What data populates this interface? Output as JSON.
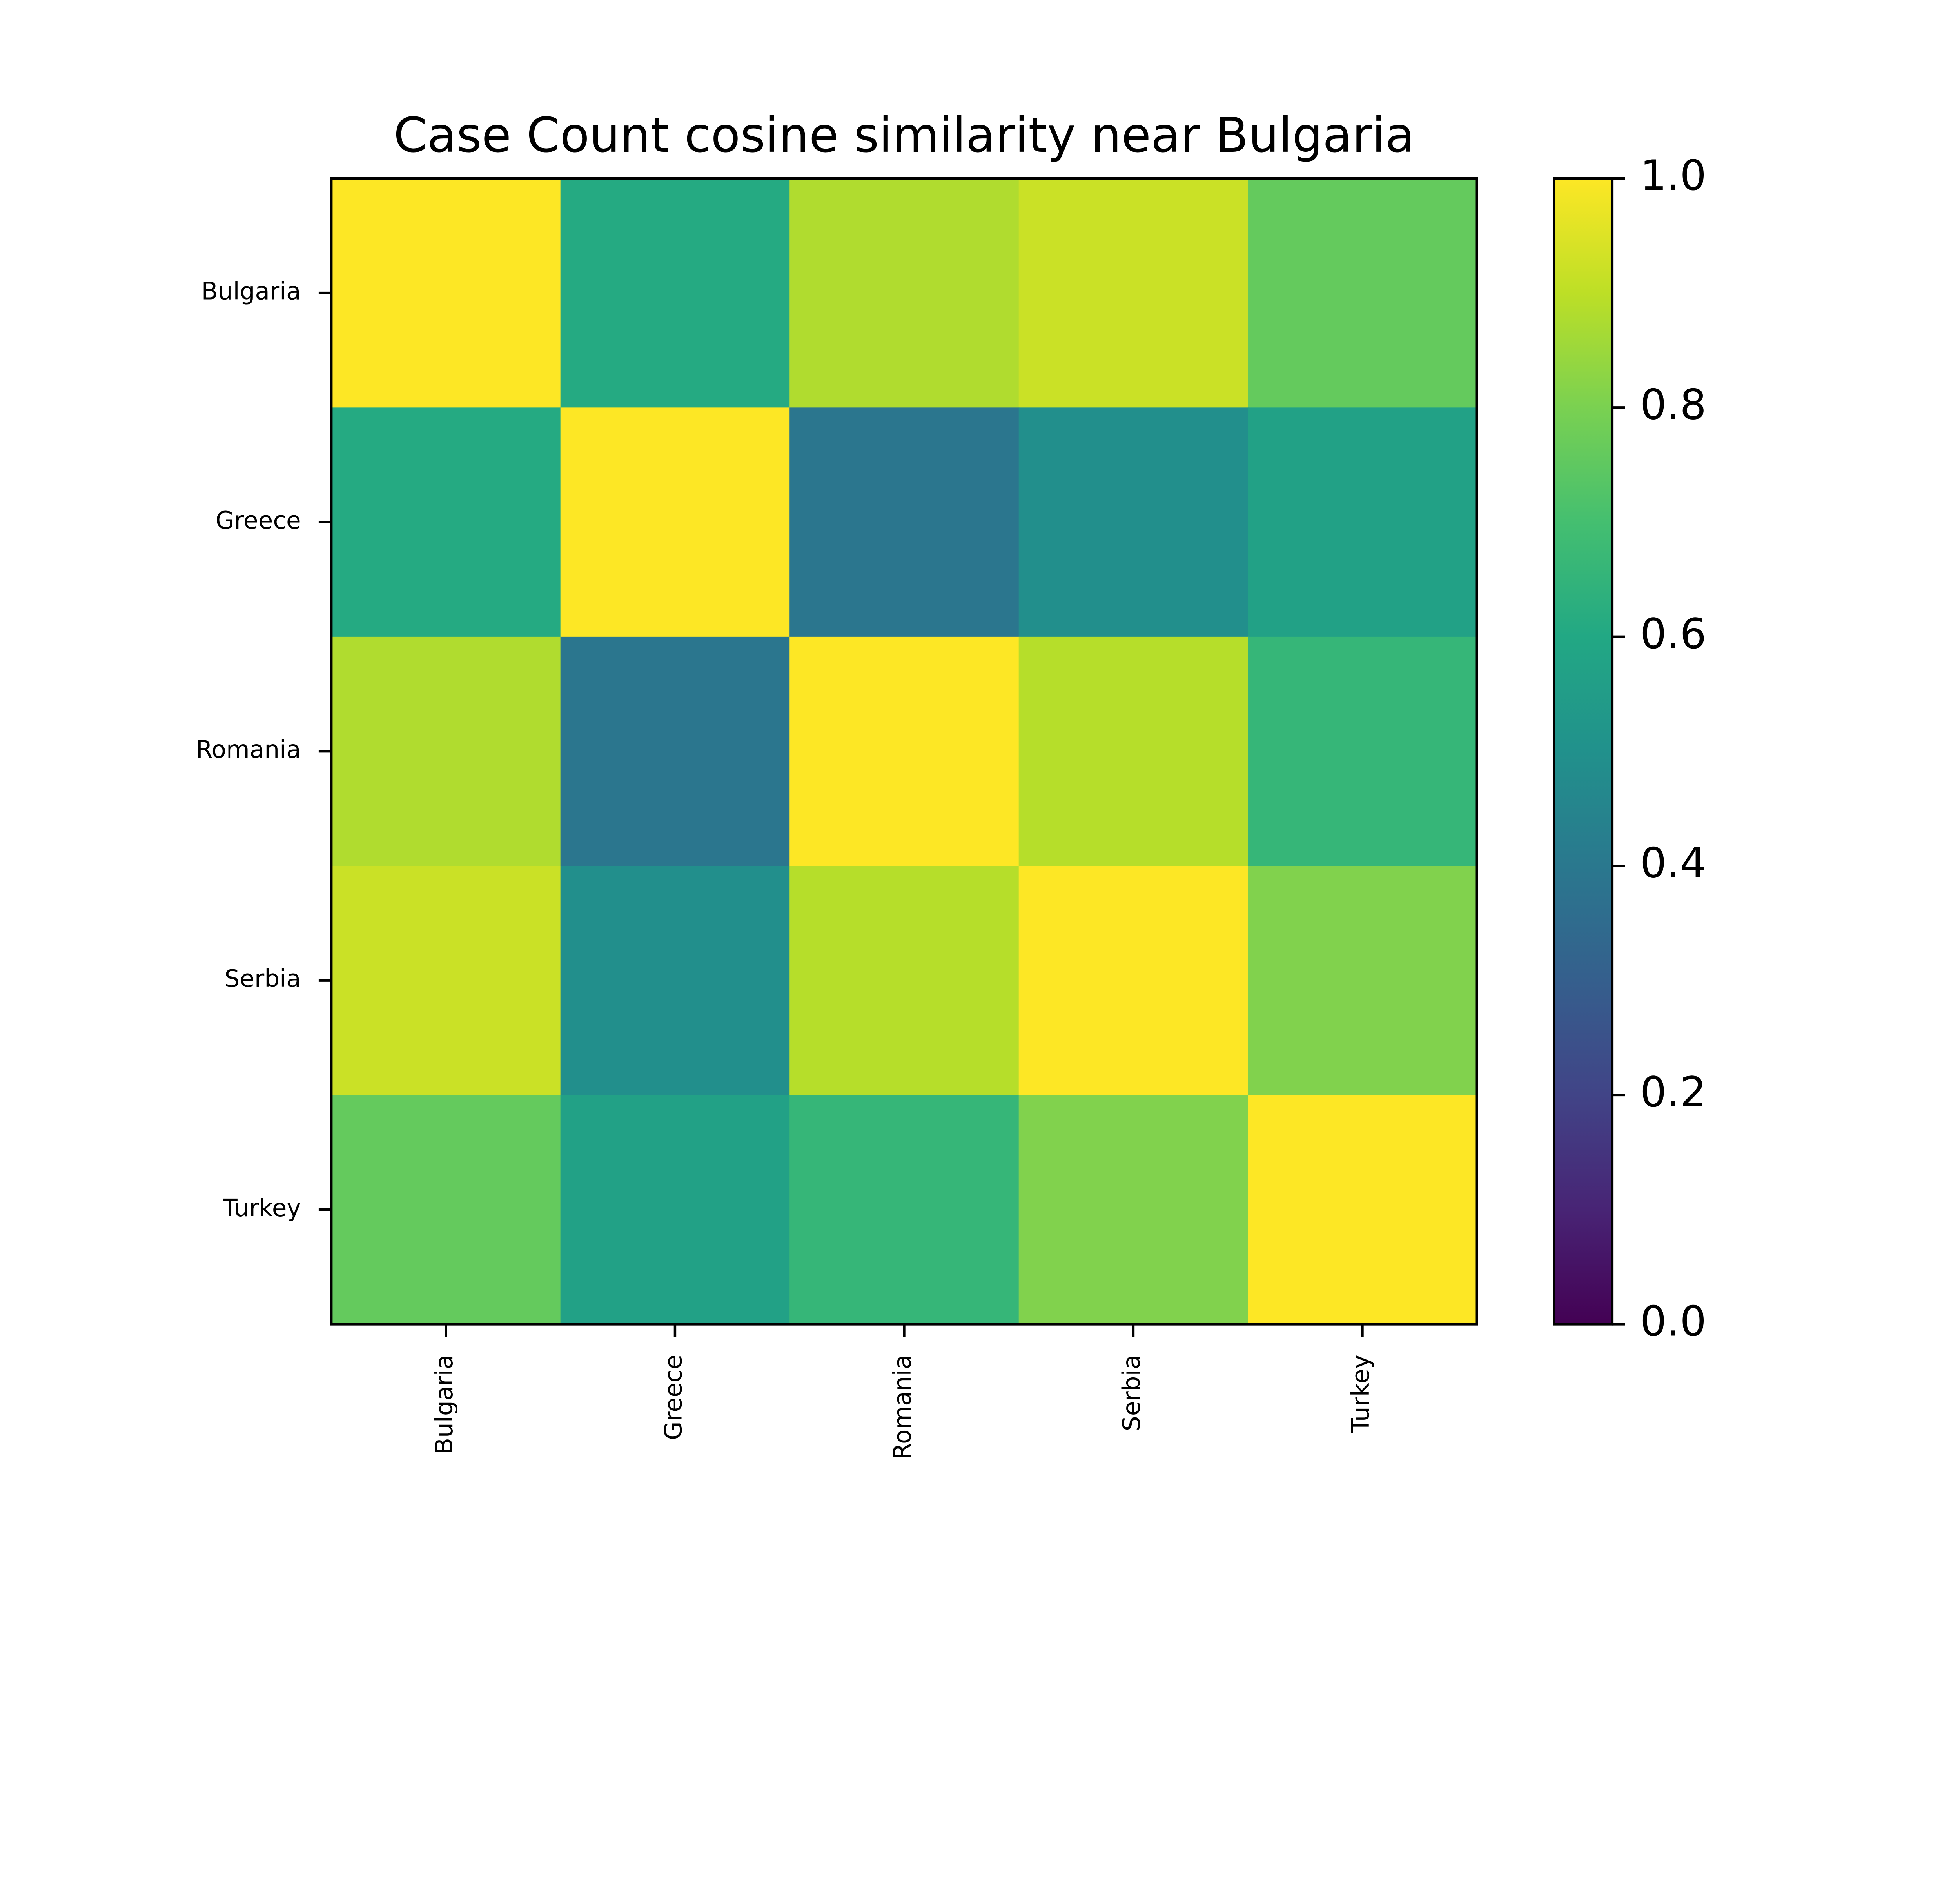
{
  "chart_data": {
    "type": "heatmap",
    "title": "Case Count cosine similarity near Bulgaria",
    "x_categories": [
      "Bulgaria",
      "Greece",
      "Romania",
      "Serbia",
      "Turkey"
    ],
    "y_categories": [
      "Bulgaria",
      "Greece",
      "Romania",
      "Serbia",
      "Turkey"
    ],
    "values": [
      [
        1.0,
        0.61,
        0.88,
        0.92,
        0.76
      ],
      [
        0.61,
        1.0,
        0.39,
        0.49,
        0.57
      ],
      [
        0.88,
        0.39,
        1.0,
        0.89,
        0.66
      ],
      [
        0.92,
        0.49,
        0.89,
        1.0,
        0.81
      ],
      [
        0.76,
        0.57,
        0.66,
        0.81,
        1.0
      ]
    ],
    "colorbar": {
      "range": [
        0.0,
        1.0
      ],
      "ticks": [
        "0.0",
        "0.2",
        "0.4",
        "0.6",
        "0.8",
        "1.0"
      ],
      "colormap": "viridis"
    },
    "grid": false,
    "legend": "colorbar-right"
  }
}
